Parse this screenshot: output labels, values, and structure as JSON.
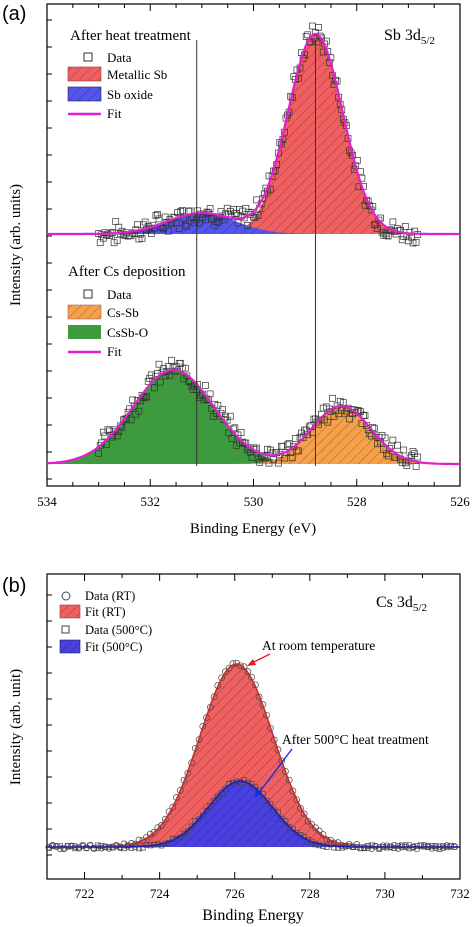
{
  "chart_data": [
    {
      "panel_label": "(a)",
      "type": "area",
      "element_label": "Sb 3d",
      "element_subscript": "5/2",
      "xlabel": "Binding Energy (eV)",
      "ylabel": "Intensity (arb. units)",
      "xlim": [
        534,
        526
      ],
      "x_reversed": true,
      "xticks": [
        534,
        532,
        530,
        528,
        526
      ],
      "vertical_lines": [
        531.1,
        528.8
      ],
      "colors": {
        "metallic": "#f06060",
        "oxide": "#5555ee",
        "cssb": "#f5a14a",
        "cssbo": "#3e9a3e",
        "fit": "#e020d0",
        "data": "#333333"
      },
      "subplots": [
        {
          "title": "After heat treatment",
          "baseline": 0.0,
          "legend": [
            "Data",
            "Metallic Sb",
            "Sb oxide",
            "Fit"
          ],
          "peaks": [
            {
              "name": "Metallic Sb",
              "center": 528.8,
              "fwhm": 1.25,
              "height": 1.0
            },
            {
              "name": "Sb oxide",
              "center": 531.0,
              "fwhm": 1.55,
              "height": 0.105
            }
          ]
        },
        {
          "title": "After Cs deposition",
          "baseline": 0.0,
          "legend": [
            "Data",
            "Cs-Sb",
            "CsSb-O",
            "Fit"
          ],
          "peaks": [
            {
              "name": "CsSb-O",
              "center": 531.55,
              "fwhm": 1.85,
              "height": 0.47
            },
            {
              "name": "Cs-Sb",
              "center": 528.3,
              "fwhm": 1.35,
              "height": 0.29
            }
          ]
        }
      ]
    },
    {
      "panel_label": "(b)",
      "type": "area",
      "element_label": "Cs 3d",
      "element_subscript": "5/2",
      "xlabel": "Binding Energy",
      "ylabel": "Intensity (arb. unit)",
      "xlim": [
        721,
        732
      ],
      "x_reversed": false,
      "xticks": [
        722,
        724,
        726,
        728,
        730,
        732
      ],
      "colors": {
        "rt": "#f06060",
        "ht": "#4a40e0",
        "data": "#444444"
      },
      "legend": [
        "Data  (RT)",
        "Fit  (RT)",
        "Data (500°C)",
        "Fit (500°C)"
      ],
      "series": [
        {
          "name": "Fit  (RT)",
          "center": 726.05,
          "fwhm": 2.3,
          "height": 1.0
        },
        {
          "name": "Fit (500°C)",
          "center": 726.15,
          "fwhm": 2.0,
          "height": 0.36
        }
      ],
      "annotations": [
        {
          "text": "At room temperature",
          "x": 726.05,
          "y": 1.0
        },
        {
          "text": "After 500°C heat treatment",
          "x": 726.2,
          "y": 0.36
        }
      ]
    }
  ]
}
